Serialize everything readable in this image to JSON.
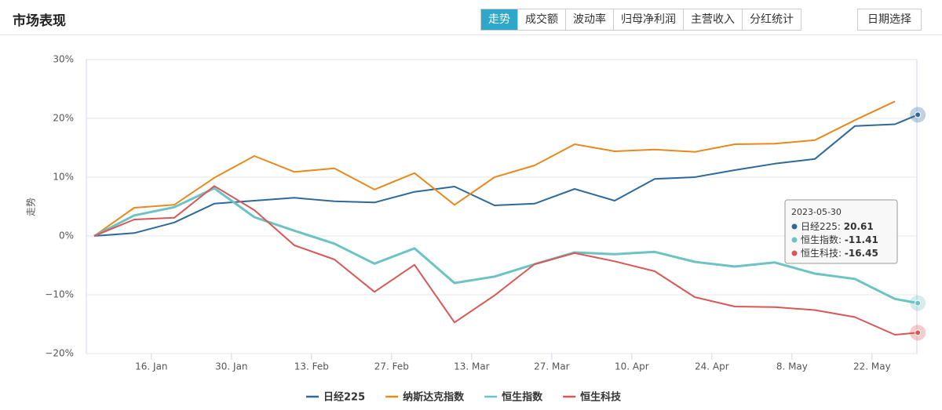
{
  "header": {
    "title": "市场表现",
    "tabs": [
      "走势",
      "成交额",
      "波动率",
      "归母净利润",
      "主营收入",
      "分红统计"
    ],
    "date_button": "日期选择"
  },
  "chart_data": {
    "type": "line",
    "y_label": "走势",
    "x": [
      "2023-01-06",
      "2023-01-13",
      "2023-01-20",
      "2023-01-27",
      "2023-02-03",
      "2023-02-10",
      "2023-02-17",
      "2023-02-24",
      "2023-03-03",
      "2023-03-10",
      "2023-03-17",
      "2023-03-24",
      "2023-03-31",
      "2023-04-07",
      "2023-04-14",
      "2023-04-21",
      "2023-04-28",
      "2023-05-05",
      "2023-05-12",
      "2023-05-19",
      "2023-05-26",
      "2023-05-30"
    ],
    "xticks": [
      {
        "value": "2023-01-16",
        "label": "16. Jan"
      },
      {
        "value": "2023-01-30",
        "label": "30. Jan"
      },
      {
        "value": "2023-02-13",
        "label": "13. Feb"
      },
      {
        "value": "2023-02-27",
        "label": "27. Feb"
      },
      {
        "value": "2023-03-13",
        "label": "13. Mar"
      },
      {
        "value": "2023-03-27",
        "label": "27. Mar"
      },
      {
        "value": "2023-04-10",
        "label": "10. Apr"
      },
      {
        "value": "2023-04-24",
        "label": "24. Apr"
      },
      {
        "value": "2023-05-08",
        "label": "8. May"
      },
      {
        "value": "2023-05-22",
        "label": "22. May"
      }
    ],
    "ylim": [
      -20,
      30
    ],
    "yticks": [
      {
        "value": -20,
        "label": "−20%"
      },
      {
        "value": -10,
        "label": "−10%"
      },
      {
        "value": 0,
        "label": "0%"
      },
      {
        "value": 10,
        "label": "10%"
      },
      {
        "value": 20,
        "label": "20%"
      },
      {
        "value": 30,
        "label": "30%"
      }
    ],
    "grid": true,
    "series": [
      {
        "name": "日经225",
        "color": "#2e6a99",
        "values": [
          0,
          0.5,
          2.3,
          5.5,
          6.0,
          6.5,
          5.9,
          5.7,
          7.5,
          8.4,
          5.2,
          5.5,
          8.0,
          6.0,
          9.7,
          10.0,
          11.2,
          12.3,
          13.1,
          18.7,
          19.0,
          20.61
        ]
      },
      {
        "name": "纳斯达克指数",
        "color": "#e8891d",
        "values": [
          0,
          4.8,
          5.3,
          9.9,
          13.6,
          10.9,
          11.5,
          7.9,
          10.7,
          5.3,
          10.0,
          12.0,
          15.6,
          14.4,
          14.7,
          14.3,
          15.6,
          15.7,
          16.3,
          19.7,
          22.9,
          null
        ]
      },
      {
        "name": "恒生指数",
        "color": "#6cc3c3",
        "values": [
          0,
          3.5,
          4.9,
          8.1,
          3.2,
          0.9,
          -1.3,
          -4.7,
          -2.1,
          -8.0,
          -6.9,
          -4.8,
          -2.8,
          -3.1,
          -2.7,
          -4.4,
          -5.2,
          -4.5,
          -6.4,
          -7.3,
          -10.7,
          -11.41
        ]
      },
      {
        "name": "恒生科技",
        "color": "#d95757",
        "values": [
          0,
          2.8,
          3.1,
          8.5,
          4.4,
          -1.6,
          -4.0,
          -9.5,
          -4.9,
          -14.7,
          -10.1,
          -4.8,
          -2.9,
          -4.3,
          -6.0,
          -10.4,
          -12.0,
          -12.1,
          -12.6,
          -13.8,
          -16.8,
          -16.45
        ]
      }
    ]
  }
}
